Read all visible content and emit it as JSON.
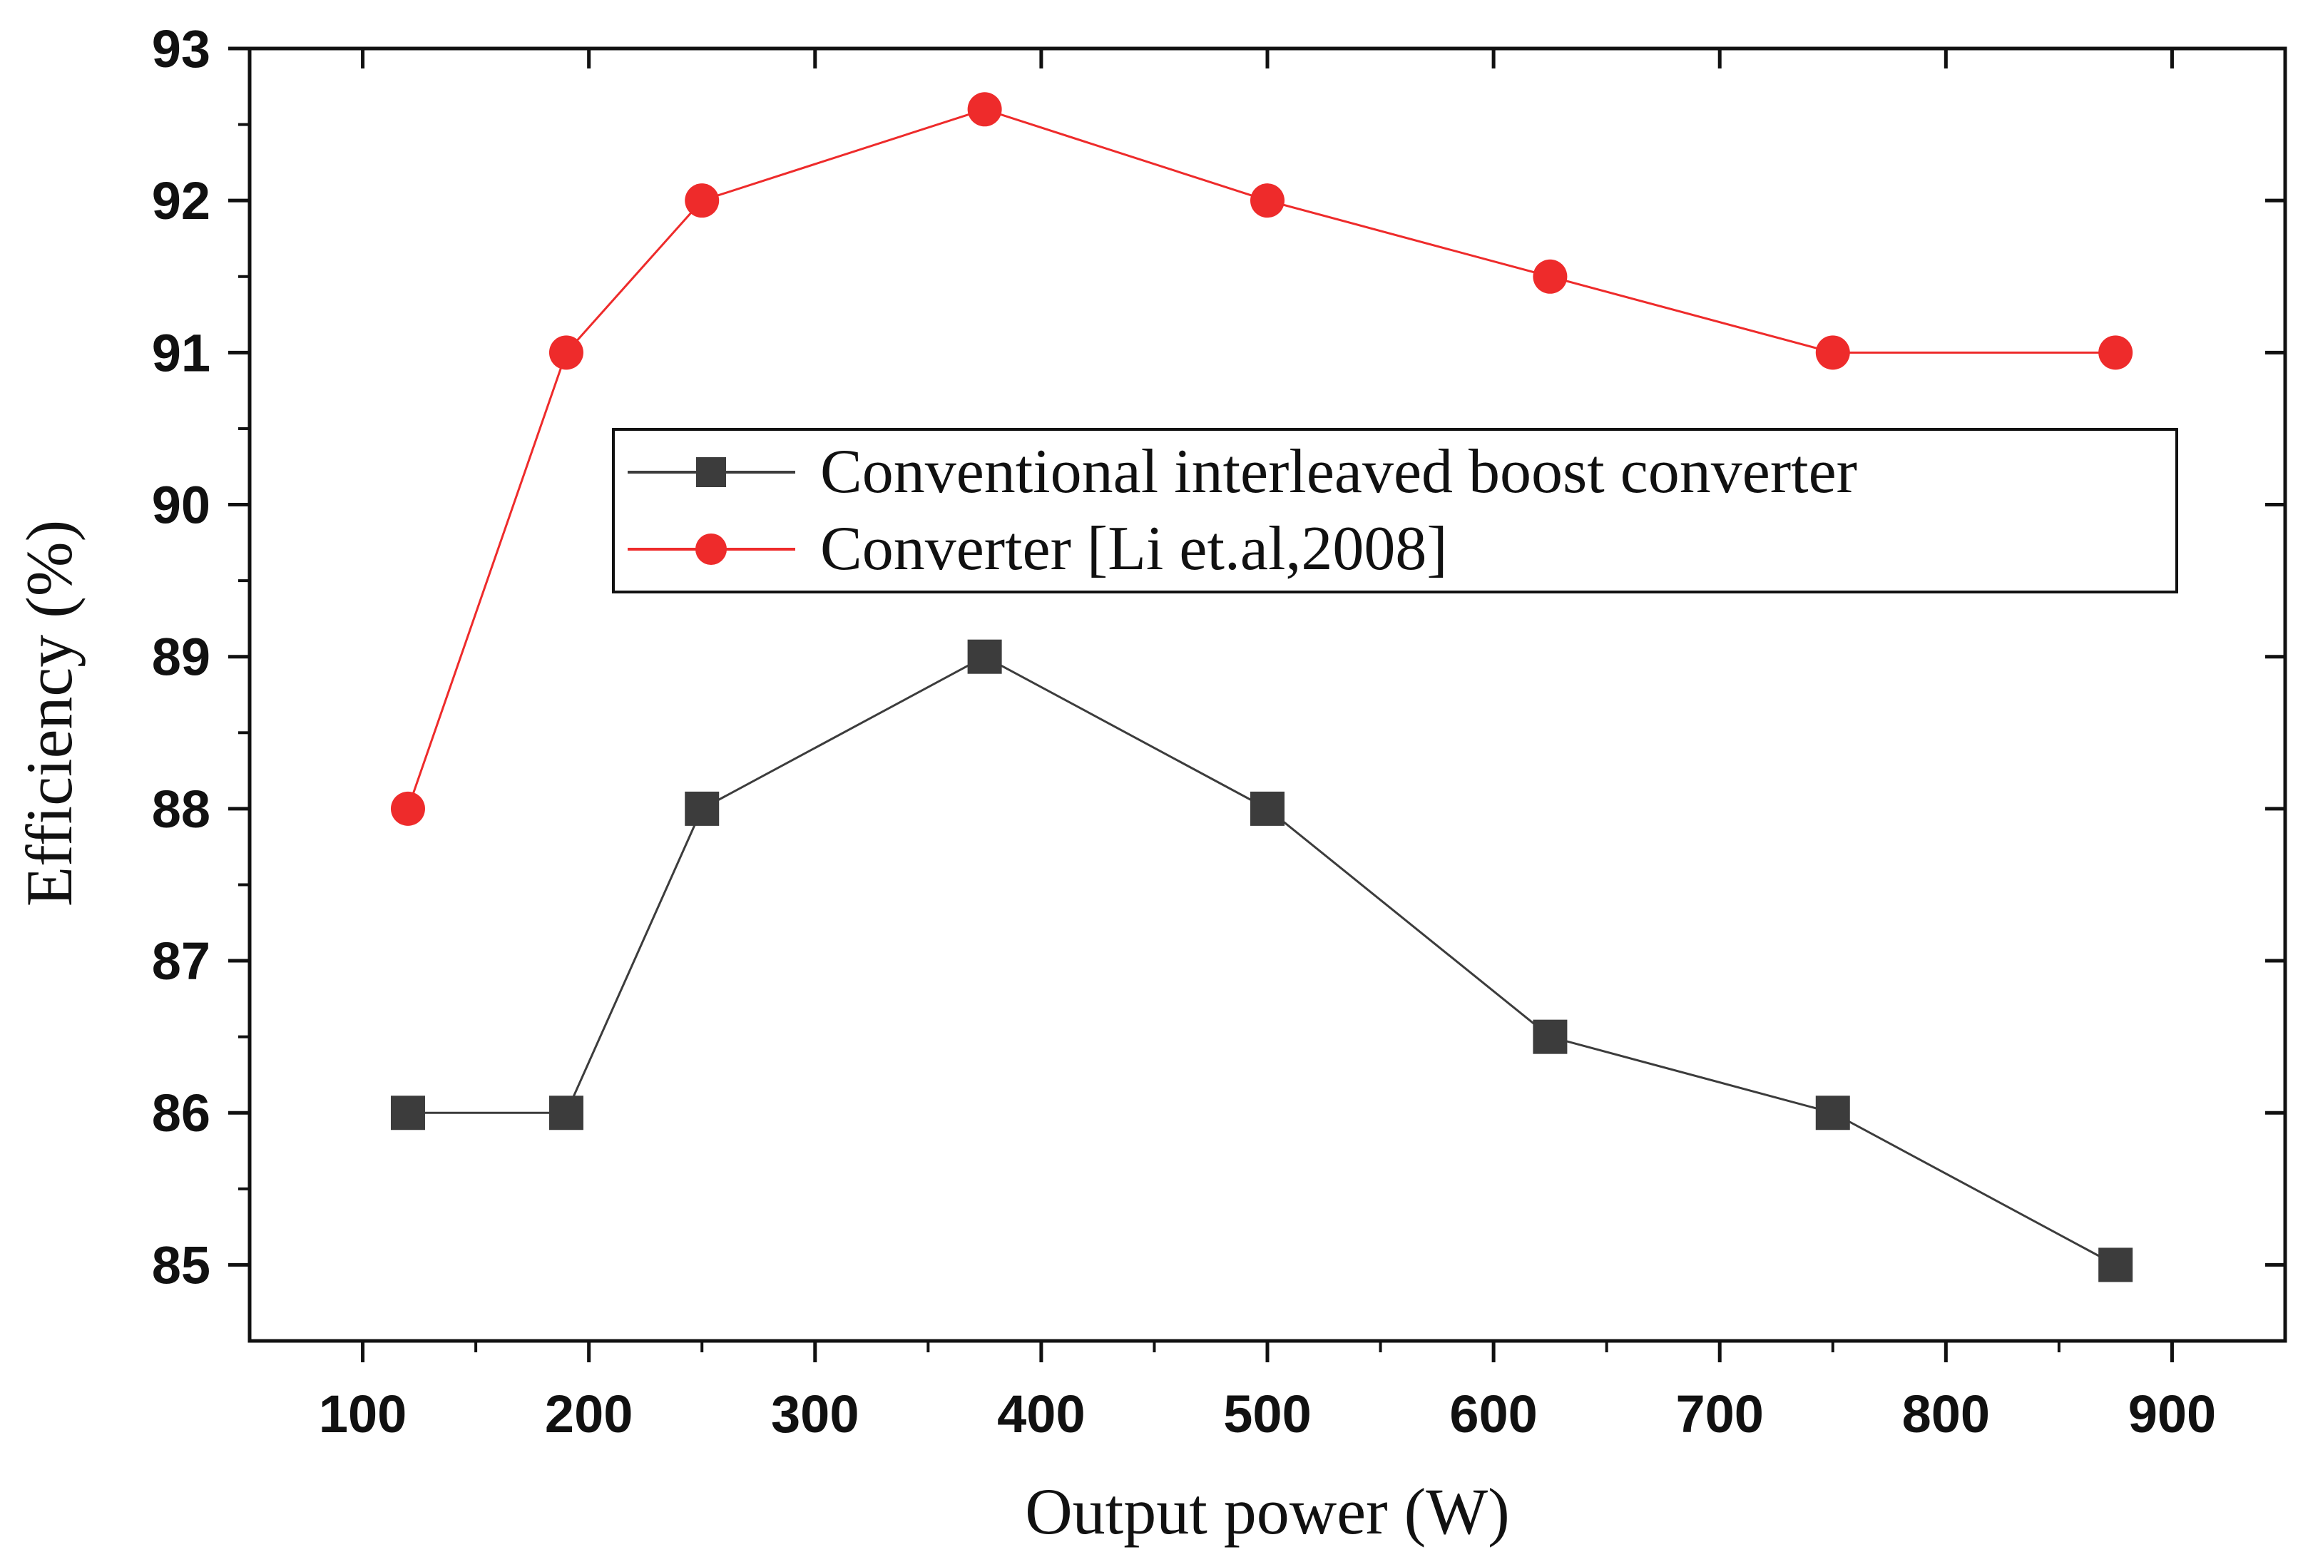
{
  "chart_data": {
    "type": "line",
    "title": "",
    "xlabel": "Output power (W)",
    "ylabel": "Efficiency (%)",
    "xlim": [
      50,
      950
    ],
    "ylim": [
      84.5,
      93
    ],
    "grid": false,
    "legend_position": "upper-right",
    "x_ticks": [
      100,
      200,
      300,
      400,
      500,
      600,
      700,
      800,
      900
    ],
    "y_ticks": [
      85,
      86,
      87,
      88,
      89,
      90,
      91,
      92,
      93
    ],
    "series": [
      {
        "name": "Conventional interleaved boost converter",
        "marker": "square",
        "color": "#3c3c3c",
        "x": [
          120,
          190,
          250,
          375,
          500,
          625,
          750,
          875
        ],
        "values": [
          86,
          86,
          88,
          89,
          88,
          86.5,
          86,
          85
        ]
      },
      {
        "name": "Converter [Li et.al,2008]",
        "marker": "circle",
        "color": "#ee2b2b",
        "x": [
          120,
          190,
          250,
          375,
          500,
          625,
          750,
          875
        ],
        "values": [
          88,
          91,
          92,
          92.6,
          92,
          91.5,
          91,
          91
        ]
      }
    ]
  }
}
